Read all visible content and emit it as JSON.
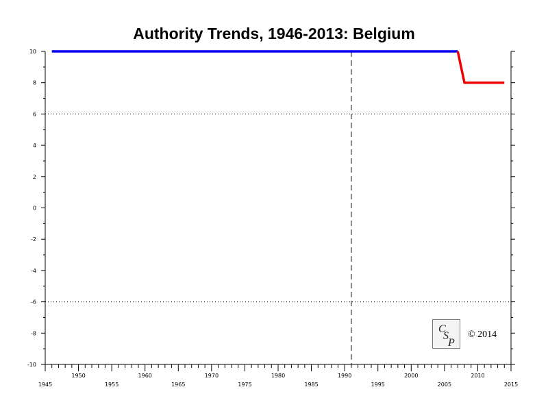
{
  "chart_data": {
    "type": "line",
    "title": "Authority Trends, 1946-2013: Belgium",
    "xlabel": "",
    "ylabel": "",
    "xlim": [
      1945,
      2015
    ],
    "ylim": [
      -10,
      10
    ],
    "x_ticks_lower": [
      1945,
      1955,
      1965,
      1975,
      1985,
      1995,
      2005,
      2015
    ],
    "x_ticks_upper": [
      1950,
      1960,
      1970,
      1980,
      1990,
      2000,
      2010
    ],
    "y_ticks": [
      10,
      8,
      6,
      4,
      2,
      0,
      -2,
      -4,
      -6,
      -8,
      -10
    ],
    "reference_lines": {
      "horizontal_dotted": [
        6,
        -6
      ],
      "vertical_dashed": [
        1991
      ]
    },
    "series": [
      {
        "color": "#0000ee",
        "x": [
          1946,
          2007
        ],
        "y": [
          10,
          10
        ]
      },
      {
        "color": "#ee0000",
        "x": [
          2007,
          2008,
          2014
        ],
        "y": [
          10,
          8,
          8
        ]
      }
    ]
  },
  "logo": {
    "text": "CSP"
  },
  "copyright": "© 2014"
}
